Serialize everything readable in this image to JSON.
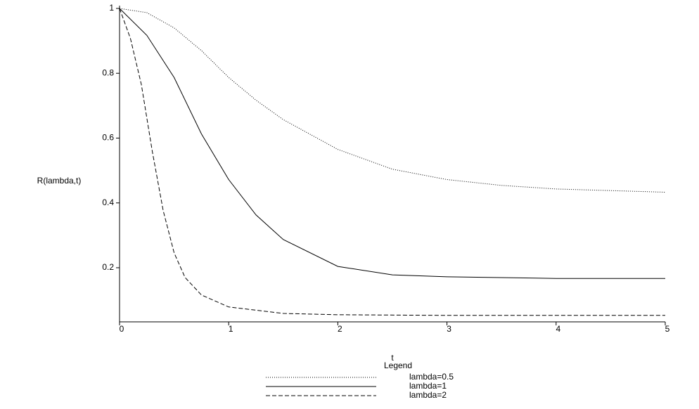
{
  "chart_data": {
    "type": "line",
    "x_label": "t",
    "y_label": "R(lambda,t)",
    "legend_title": "Legend",
    "xlim": [
      0,
      5
    ],
    "ylim": [
      0.033,
      1
    ],
    "xticks": [
      0,
      1,
      2,
      3,
      4,
      5
    ],
    "yticks": [
      0.2,
      0.4,
      0.6,
      0.8,
      1
    ],
    "series": [
      {
        "name": "lambda=0.5",
        "color": "#000000",
        "dash": "1,2",
        "x": [
          0,
          0.25,
          0.5,
          0.75,
          1,
          1.25,
          1.5,
          2,
          2.5,
          3,
          3.5,
          4,
          5
        ],
        "values": [
          1,
          0.987,
          0.94,
          0.87,
          0.787,
          0.717,
          0.657,
          0.565,
          0.504,
          0.472,
          0.454,
          0.443,
          0.433
        ]
      },
      {
        "name": "lambda=1",
        "color": "#000000",
        "dash": "none",
        "x": [
          0,
          0.25,
          0.5,
          0.75,
          1,
          1.25,
          1.5,
          2,
          2.5,
          3,
          4,
          5
        ],
        "values": [
          1,
          0.917,
          0.787,
          0.613,
          0.472,
          0.363,
          0.287,
          0.204,
          0.178,
          0.172,
          0.167,
          0.167
        ]
      },
      {
        "name": "lambda=2",
        "color": "#000000",
        "dash": "6,3",
        "x": [
          0,
          0.1,
          0.2,
          0.3,
          0.4,
          0.5,
          0.6,
          0.75,
          1,
          1.5,
          2,
          3,
          4,
          5
        ],
        "values": [
          1,
          0.907,
          0.765,
          0.559,
          0.376,
          0.246,
          0.17,
          0.116,
          0.079,
          0.059,
          0.055,
          0.053,
          0.053,
          0.053
        ]
      }
    ]
  }
}
